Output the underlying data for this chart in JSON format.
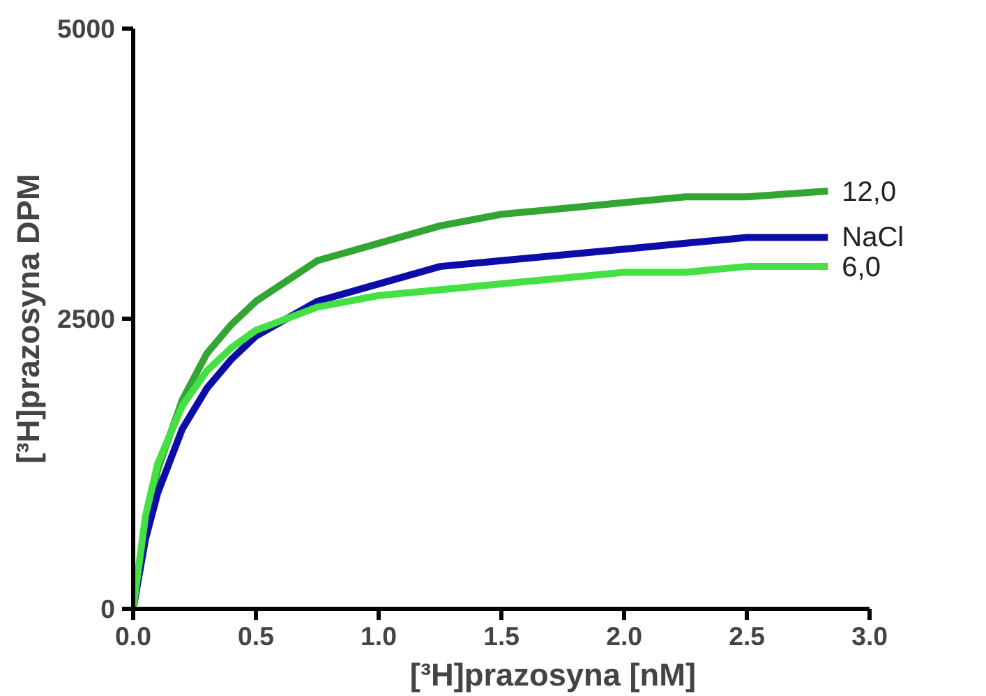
{
  "chart_data": {
    "type": "line",
    "xlabel": "[³H]prazosyna [nM]",
    "ylabel": "[³H]prazosyna DPM",
    "xlim": [
      0,
      3.0
    ],
    "ylim": [
      0,
      5000
    ],
    "xticks": [
      {
        "value": 0,
        "label": "0.0"
      },
      {
        "value": 0.5,
        "label": "0.5"
      },
      {
        "value": 1,
        "label": "1.0"
      },
      {
        "value": 1.5,
        "label": "1.5"
      },
      {
        "value": 2,
        "label": "2.0"
      },
      {
        "value": 2.5,
        "label": "2.5"
      },
      {
        "value": 3,
        "label": "3.0"
      }
    ],
    "yticks": [
      0,
      2500,
      5000
    ],
    "grid": false,
    "marker": "none",
    "line_style": "solid",
    "x": [
      0,
      0.05,
      0.1,
      0.2,
      0.3,
      0.4,
      0.5,
      0.75,
      1,
      1.25,
      1.5,
      1.75,
      2,
      2.25,
      2.5,
      2.83
    ],
    "series": [
      {
        "name": "12,0",
        "color": "#33a533",
        "values": [
          0,
          700,
          1200,
          1800,
          2200,
          2450,
          2650,
          3000,
          3150,
          3300,
          3400,
          3450,
          3500,
          3550,
          3550,
          3600
        ]
      },
      {
        "name": "NaCl",
        "color": "#0c0ca8",
        "values": [
          0,
          600,
          1000,
          1550,
          1900,
          2150,
          2350,
          2650,
          2800,
          2950,
          3000,
          3050,
          3100,
          3150,
          3200,
          3200
        ]
      },
      {
        "name": "6,0",
        "color": "#44e044",
        "values": [
          0,
          800,
          1250,
          1750,
          2050,
          2250,
          2400,
          2600,
          2700,
          2750,
          2800,
          2850,
          2900,
          2900,
          2950,
          2950
        ]
      }
    ]
  }
}
